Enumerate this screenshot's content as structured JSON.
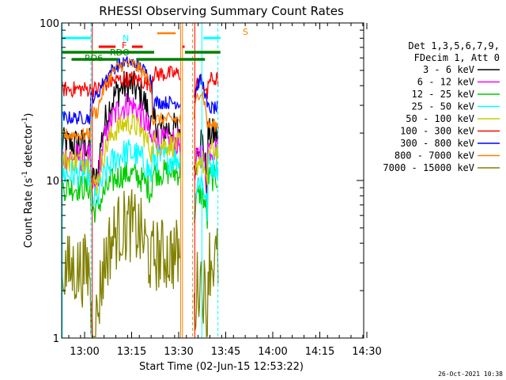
{
  "chart_data": {
    "type": "line",
    "title": "RHESSI Observing Summary Count Rates",
    "xlabel": "Start Time (02-Jun-15 12:53:22)",
    "ylabel_main": "Count Rate (s",
    "ylabel_sup": "-1",
    "ylabel_tail": " detector",
    "ylabel_end": ")",
    "yscale": "log",
    "ylim": [
      1,
      100
    ],
    "xlim_minutes": [
      0,
      98
    ],
    "x_ticks": [
      "13:00",
      "13:15",
      "13:30",
      "13:45",
      "14:00",
      "14:15",
      "14:30"
    ],
    "y_ticks": [
      "1",
      "10",
      "100"
    ],
    "footer": "26-Oct-2021 10:38",
    "legend_header": [
      "Det 1,3,5,6,7,9,",
      "FDecim 1, Att 0"
    ],
    "series": [
      {
        "name": "3 - 6 keV",
        "color": "#000000",
        "base": 17,
        "amp": 40,
        "floor": 10,
        "noise": 0.25
      },
      {
        "name": "6 - 12 keV",
        "color": "#ff00ff",
        "base": 14,
        "amp": 30,
        "floor": 9,
        "noise": 0.22
      },
      {
        "name": "12 - 25 keV",
        "color": "#00cc00",
        "base": 9.0,
        "amp": 11,
        "floor": 6.5,
        "noise": 0.2
      },
      {
        "name": "25 - 50 keV",
        "color": "#00ffff",
        "base": 11,
        "amp": 15,
        "floor": 7.5,
        "noise": 0.22
      },
      {
        "name": "50 - 100 keV",
        "color": "#cccc00",
        "base": 13.5,
        "amp": 23,
        "floor": 9.5,
        "noise": 0.18
      },
      {
        "name": "100 - 300 keV",
        "color": "#ff0000",
        "base": 38,
        "amp": 44,
        "floor": 38,
        "noise": 0.12
      },
      {
        "name": "300 - 800 keV",
        "color": "#0000ff",
        "base": 25,
        "amp": 56,
        "floor": 34,
        "noise": 0.1
      },
      {
        "name": "800 - 7000 keV",
        "color": "#ff8000",
        "base": 19.5,
        "amp": 55,
        "floor": 27,
        "noise": 0.1
      },
      {
        "name": "7000 - 15000 keV",
        "color": "#808000",
        "base": 2.7,
        "amp": 5.2,
        "floor": 1.3,
        "noise": 0.55
      }
    ],
    "flags": {
      "N": {
        "label": "N",
        "color": "#00ffff"
      },
      "F": {
        "label": "F",
        "color": "#ff0000"
      },
      "S": {
        "label": "S",
        "color": "#ff8000"
      },
      "RD6": {
        "label": "RD6",
        "color": "#008000"
      },
      "RDO": {
        "label": "RDO",
        "color": "#008000"
      }
    }
  }
}
